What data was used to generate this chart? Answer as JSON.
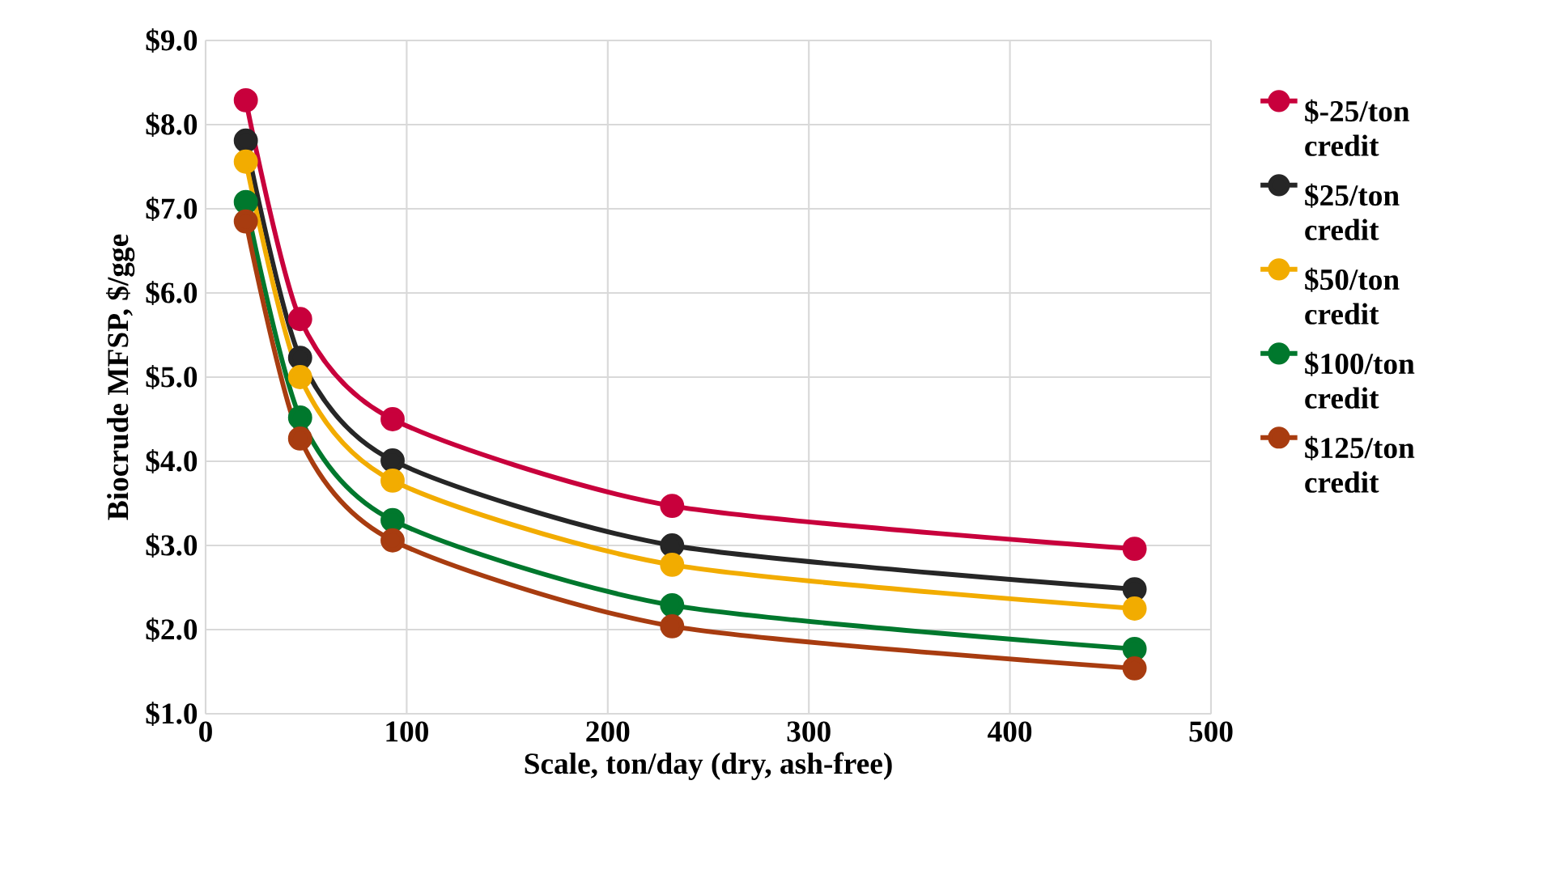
{
  "chart_data": {
    "type": "line",
    "xlabel": "Scale, ton/day (dry, ash-free)",
    "ylabel": "Biocrude MFSP, $/gge",
    "x": [
      20,
      47,
      93,
      232,
      462
    ],
    "series": [
      {
        "name": "$-25/ton credit",
        "color": "#c8003c",
        "values": [
          8.29,
          5.69,
          4.5,
          3.47,
          2.96
        ]
      },
      {
        "name": "$25/ton credit",
        "color": "#262626",
        "values": [
          7.81,
          5.23,
          4.01,
          3.0,
          2.48
        ]
      },
      {
        "name": "$50/ton credit",
        "color": "#f2ac00",
        "values": [
          7.56,
          5.0,
          3.77,
          2.77,
          2.25
        ]
      },
      {
        "name": "$100/ton credit",
        "color": "#00782d",
        "values": [
          7.08,
          4.52,
          3.3,
          2.29,
          1.77
        ]
      },
      {
        "name": "$125/ton credit",
        "color": "#a83c10",
        "values": [
          6.85,
          4.27,
          3.06,
          2.04,
          1.54
        ]
      }
    ],
    "xlim": [
      0,
      500
    ],
    "xticks": [
      0,
      100,
      200,
      300,
      400,
      500
    ],
    "ylim": [
      1,
      9
    ],
    "yticks": [
      {
        "value": 1,
        "label": "$1.0"
      },
      {
        "value": 2,
        "label": "$2.0"
      },
      {
        "value": 3,
        "label": "$3.0"
      },
      {
        "value": 4,
        "label": "$4.0"
      },
      {
        "value": 5,
        "label": "$5.0"
      },
      {
        "value": 6,
        "label": "$6.0"
      },
      {
        "value": 7,
        "label": "$7.0"
      },
      {
        "value": 8,
        "label": "$8.0"
      },
      {
        "value": 9,
        "label": "$9.0"
      }
    ],
    "grid": true,
    "legend": "right",
    "marker": "circle",
    "line_style": "solid"
  }
}
